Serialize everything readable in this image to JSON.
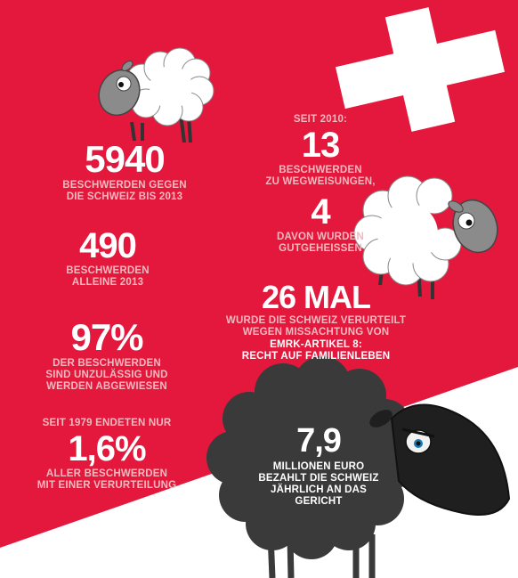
{
  "colors": {
    "background_red": "#e3183c",
    "diagonal_white": "#ffffff",
    "cross_white": "#ffffff",
    "label_pink": "#f2b9bf",
    "number_white": "#ffffff",
    "black_sheep": "#3a3a3a"
  },
  "icons": [
    "swiss-cross-icon",
    "white-sheep-icon",
    "black-sheep-icon"
  ],
  "stats": {
    "s1": {
      "number": "5940",
      "l1": "Beschwerden gegen",
      "l2": "die Schweiz bis 2013"
    },
    "s2": {
      "number": "490",
      "l1": "Beschwerden",
      "l2": "alleine 2013"
    },
    "s3": {
      "number": "97%",
      "l1": "der Beschwerden",
      "l2": "sind unzulässig und",
      "l3": "werden abgewiesen"
    },
    "s4": {
      "pre": "Seit 1979 endeten nur",
      "number": "1,6%",
      "l1": "aller Beschwerden",
      "l2": "mit einer Verurteilung"
    },
    "s5": {
      "pre": "Seit 2010:",
      "number": "13",
      "l1": "Beschwerden",
      "l2": "zu Wegweisungen,"
    },
    "s6": {
      "number": "4",
      "l1": "davon wurden",
      "l2": "gutgeheissen"
    },
    "s7": {
      "number": "26 MAL",
      "l1": "wurde die Schweiz verurteilt",
      "l2": "wegen Missachtung von",
      "l3": "EMRK-Artikel 8:",
      "l4": "Recht auf Familienleben"
    },
    "s8": {
      "number": "7,9",
      "l1": "Millionen Euro",
      "l2": "bezahlt die Schweiz",
      "l3": "jährlich an das Gericht"
    }
  }
}
